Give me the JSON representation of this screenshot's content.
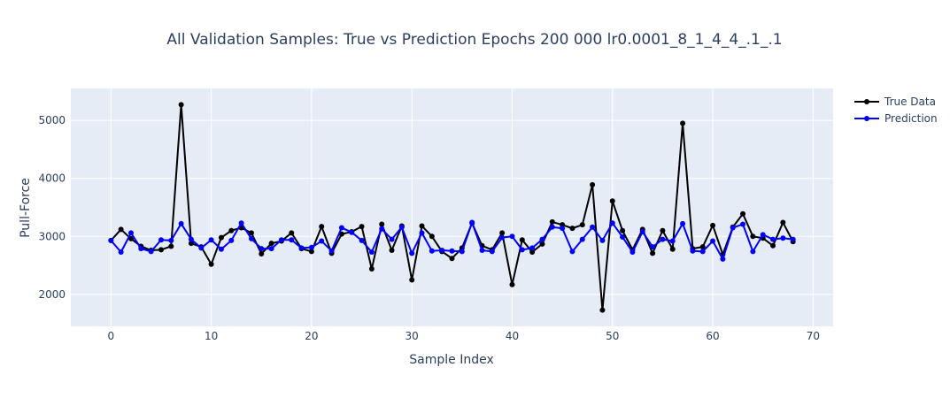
{
  "chart_data": {
    "type": "line",
    "title": "All Validation Samples: True vs Prediction Epochs 200 000 lr0.0001_8_1_4_4_.1_.1",
    "xlabel": "Sample Index",
    "ylabel": "Pull-Force",
    "xlim": [
      -4,
      72
    ],
    "ylim": [
      1450,
      5550
    ],
    "xticks": [
      0,
      10,
      20,
      30,
      40,
      50,
      60,
      70
    ],
    "yticks": [
      2000,
      3000,
      4000,
      5000
    ],
    "grid": true,
    "legend_position": "top-right, outside plot",
    "background_color": "#e5ecf6",
    "series": [
      {
        "name": "True Data",
        "color": "#000000",
        "x": [
          0,
          1,
          2,
          3,
          4,
          5,
          6,
          7,
          8,
          9,
          10,
          11,
          12,
          13,
          14,
          15,
          16,
          17,
          18,
          19,
          20,
          21,
          22,
          23,
          24,
          25,
          26,
          27,
          28,
          29,
          30,
          31,
          32,
          33,
          34,
          35,
          36,
          37,
          38,
          39,
          40,
          41,
          42,
          43,
          44,
          45,
          46,
          47,
          48,
          49,
          50,
          51,
          52,
          53,
          54,
          55,
          56,
          57,
          58,
          59,
          60,
          61,
          62,
          63,
          64,
          65,
          66,
          67,
          68
        ],
        "values": [
          2930,
          3120,
          2960,
          2830,
          2760,
          2770,
          2830,
          5270,
          2880,
          2820,
          2520,
          2980,
          3100,
          3150,
          3060,
          2700,
          2880,
          2920,
          3060,
          2790,
          2740,
          3170,
          2710,
          3040,
          3080,
          3170,
          2440,
          3210,
          2760,
          3180,
          2250,
          3180,
          3000,
          2740,
          2620,
          2800,
          3230,
          2840,
          2770,
          3060,
          2170,
          2940,
          2730,
          2870,
          3250,
          3200,
          3140,
          3200,
          3890,
          1730,
          3610,
          3100,
          2770,
          3120,
          2710,
          3100,
          2780,
          4950,
          2790,
          2820,
          3190,
          2690,
          3160,
          3390,
          3000,
          2970,
          2840,
          3240,
          2910
        ]
      },
      {
        "name": "Prediction",
        "color": "#0000ff",
        "x": [
          0,
          1,
          2,
          3,
          4,
          5,
          6,
          7,
          8,
          9,
          10,
          11,
          12,
          13,
          14,
          15,
          16,
          17,
          18,
          19,
          20,
          21,
          22,
          23,
          24,
          25,
          26,
          27,
          28,
          29,
          30,
          31,
          32,
          33,
          34,
          35,
          36,
          37,
          38,
          39,
          40,
          41,
          42,
          43,
          44,
          45,
          46,
          47,
          48,
          49,
          50,
          51,
          52,
          53,
          54,
          55,
          56,
          57,
          58,
          59,
          60,
          61,
          62,
          63,
          64,
          65,
          66,
          67,
          68
        ],
        "values": [
          2930,
          2730,
          3060,
          2790,
          2740,
          2940,
          2930,
          3220,
          2950,
          2800,
          2940,
          2780,
          2930,
          3230,
          2960,
          2790,
          2790,
          2940,
          2940,
          2800,
          2810,
          2920,
          2750,
          3150,
          3070,
          2930,
          2730,
          3130,
          2950,
          3160,
          2710,
          3060,
          2750,
          2760,
          2750,
          2740,
          3240,
          2760,
          2740,
          2980,
          3000,
          2770,
          2800,
          2950,
          3160,
          3140,
          2740,
          2950,
          3160,
          2930,
          3230,
          2990,
          2730,
          3080,
          2820,
          2950,
          2920,
          3220,
          2750,
          2740,
          2920,
          2610,
          3150,
          3210,
          2740,
          3030,
          2950,
          2970,
          2950
        ]
      }
    ]
  }
}
